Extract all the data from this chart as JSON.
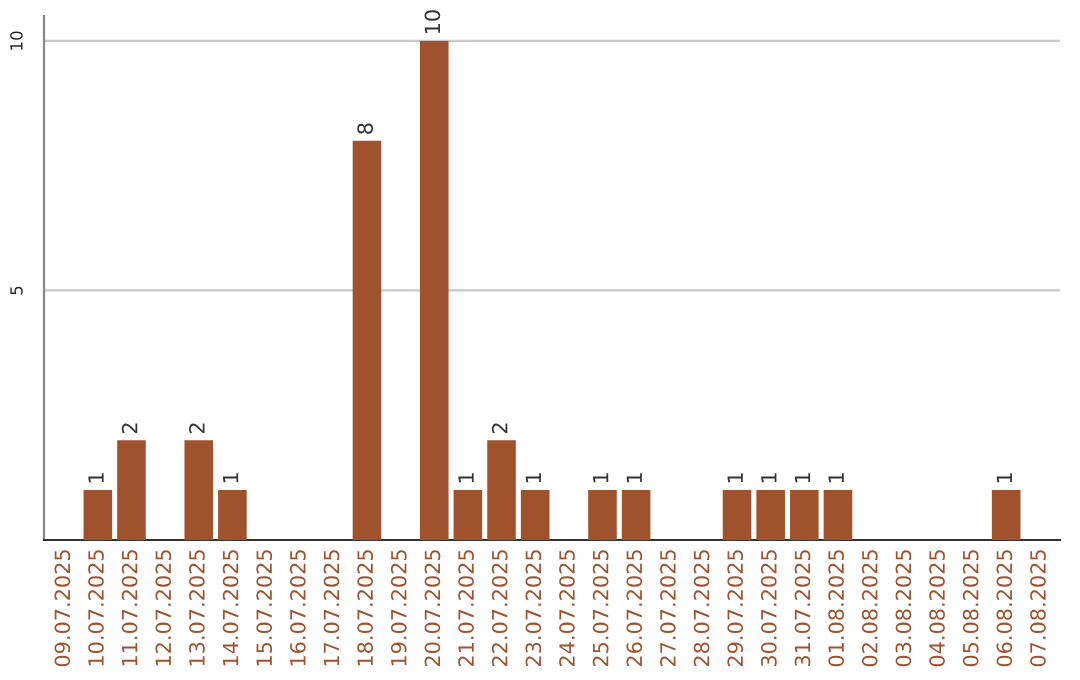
{
  "chart_data": {
    "type": "bar",
    "categories": [
      "09.07.2025",
      "10.07.2025",
      "11.07.2025",
      "12.07.2025",
      "13.07.2025",
      "14.07.2025",
      "15.07.2025",
      "16.07.2025",
      "17.07.2025",
      "18.07.2025",
      "19.07.2025",
      "20.07.2025",
      "21.07.2025",
      "22.07.2025",
      "23.07.2025",
      "24.07.2025",
      "25.07.2025",
      "26.07.2025",
      "27.07.2025",
      "28.07.2025",
      "29.07.2025",
      "30.07.2025",
      "31.07.2025",
      "01.08.2025",
      "02.08.2025",
      "03.08.2025",
      "04.08.2025",
      "05.08.2025",
      "06.08.2025",
      "07.08.2025"
    ],
    "values": [
      0,
      1,
      2,
      0,
      2,
      1,
      0,
      0,
      0,
      8,
      0,
      10,
      1,
      2,
      1,
      0,
      1,
      1,
      0,
      0,
      1,
      1,
      1,
      1,
      0,
      0,
      0,
      0,
      1,
      0
    ],
    "value_labels": [
      null,
      "1",
      "2",
      null,
      "2",
      "1",
      null,
      null,
      null,
      "8",
      null,
      "10",
      "1",
      "2",
      "1",
      null,
      "1",
      "1",
      null,
      null,
      "1",
      "1",
      "1",
      "1",
      null,
      null,
      null,
      null,
      "1",
      null
    ],
    "color": "#a0522d",
    "ylim": [
      0,
      10.5
    ],
    "yticks": [
      5,
      10
    ],
    "grid": "y"
  }
}
